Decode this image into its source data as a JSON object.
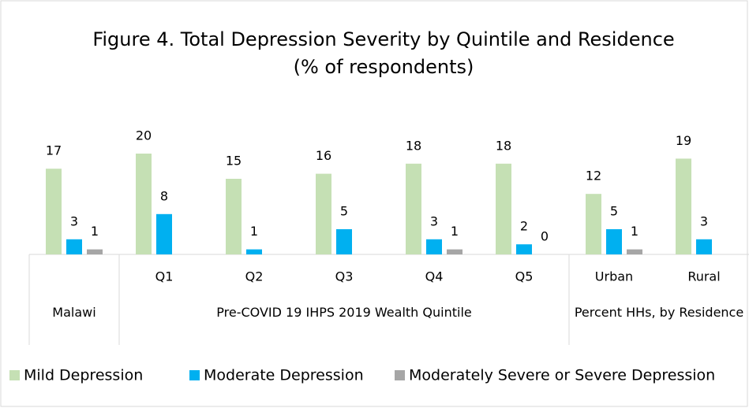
{
  "chart_data": {
    "type": "bar",
    "title": "Figure 4. Total Depression Severity by Quintile and Residence",
    "subtitle": "(% of respondents)",
    "categories": [
      null,
      "Q1",
      "Q2",
      "Q3",
      "Q4",
      "Q5",
      "Urban",
      "Rural"
    ],
    "groups": [
      {
        "name": "Malawi",
        "size": 1
      },
      {
        "name": "Pre-COVID 19 IHPS 2019 Wealth Quintile",
        "size": 5
      },
      {
        "name": "Percent HHs, by Residence",
        "size": 2
      }
    ],
    "series": [
      {
        "name": "Mild Depression",
        "color": "#c5e0b4",
        "values": [
          17,
          20,
          15,
          16,
          18,
          18,
          12,
          19
        ]
      },
      {
        "name": "Moderate Depression",
        "color": "#00b0f0",
        "values": [
          3,
          8,
          1,
          5,
          3,
          2,
          5,
          3
        ]
      },
      {
        "name": "Moderately Severe or Severe Depression",
        "color": "#a6a6a6",
        "values": [
          1,
          null,
          null,
          null,
          1,
          0,
          1,
          null
        ]
      }
    ],
    "legend": "bottom"
  }
}
